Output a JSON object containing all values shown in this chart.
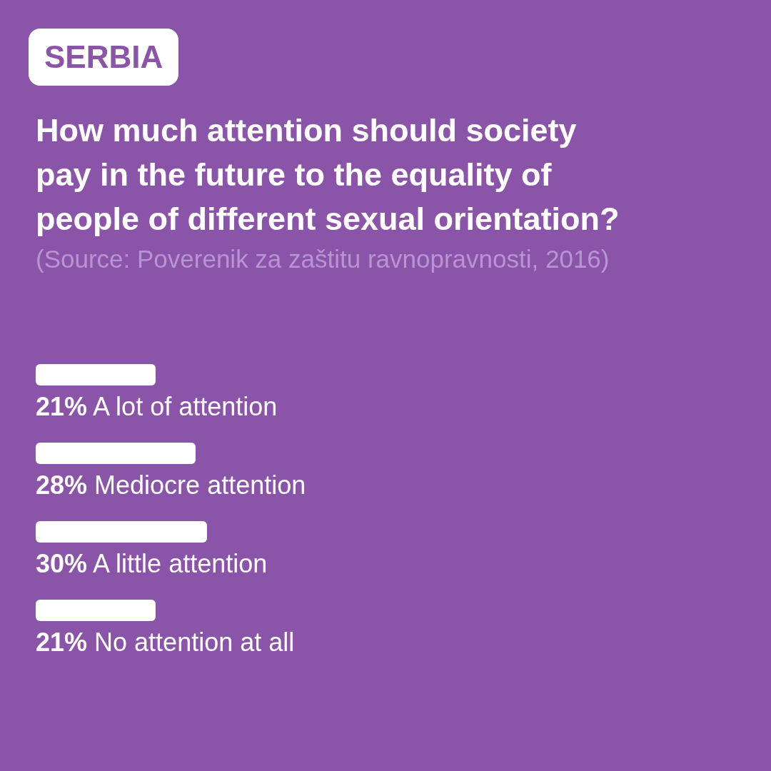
{
  "chart_data": {
    "type": "bar",
    "orientation": "horizontal",
    "title": "How much attention should society pay in the future to the equality of people of different sexual orientation?",
    "annotations": [
      "SERBIA",
      "(Source: Poverenik za zaštitu ravnopravnosti, 2016)"
    ],
    "categories": [
      "A lot of attention",
      "Mediocre attention",
      "A little attention",
      "No attention at all"
    ],
    "values": [
      21,
      28,
      30,
      21
    ],
    "value_labels": [
      "21%",
      "28%",
      "30%",
      "21%"
    ],
    "color": "#ffffff",
    "grid": false,
    "legend": false
  }
}
